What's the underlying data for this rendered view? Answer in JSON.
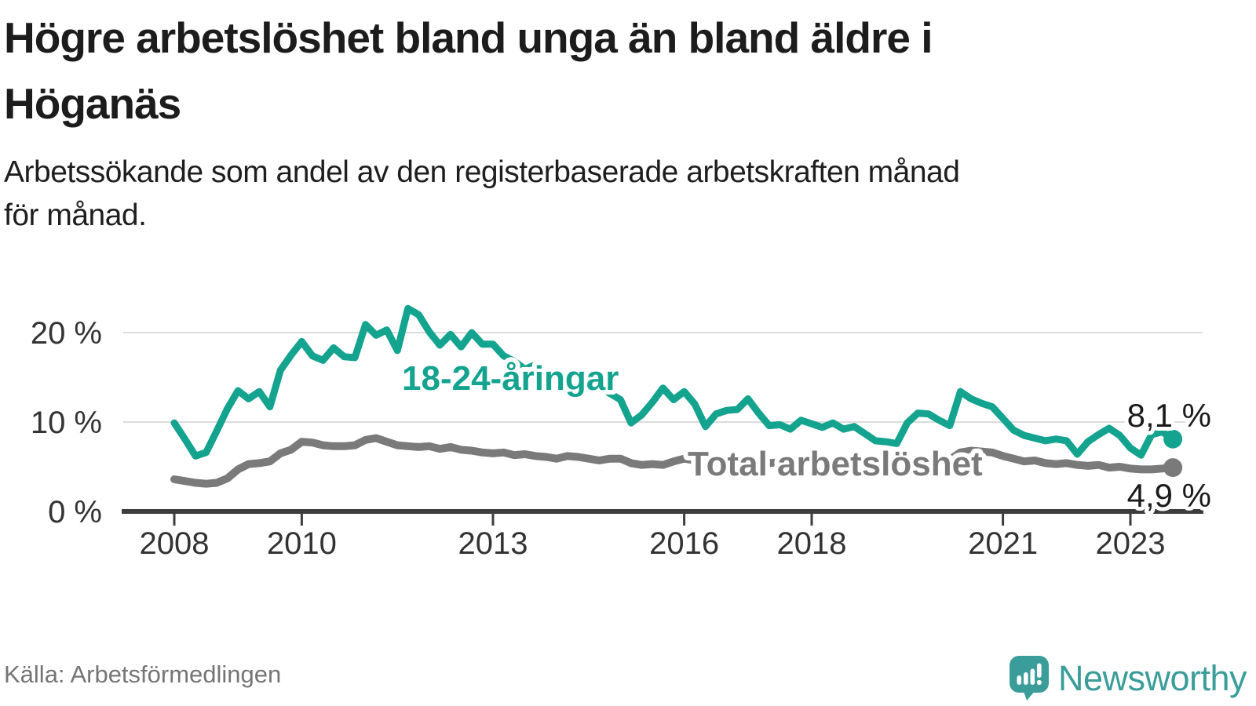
{
  "title": {
    "line1": "Högre arbetslöshet bland unga än bland äldre i",
    "line2": "Höganäs"
  },
  "subtitle": {
    "line1": "Arbetssökande som andel av den registerbaserade arbetskraften månad",
    "line2": "för månad."
  },
  "source": "Källa: Arbetsförmedlingen",
  "branding": {
    "name": "Newsworthy",
    "color": "#3a9d99",
    "icon": "newsworthy-speech-bubble-bar-chart-icon"
  },
  "colors": {
    "young_series": "#14a38e",
    "total_series": "#7a7a7a",
    "axis": "#3d3d3d",
    "gridline": "#dcdcdc",
    "tick_text": "#333333"
  },
  "chart_data": {
    "type": "line",
    "title": "Högre arbetslöshet bland unga än bland äldre i Höganäs",
    "subtitle": "Arbetssökande som andel av den registerbaserade arbetskraften månad för månad.",
    "xlabel": "",
    "ylabel": "",
    "x_start_year": 2008,
    "x_step_years": 0.1666667,
    "x_end_year_approx": 2023.67,
    "xlim": [
      2007.4,
      2024.1
    ],
    "ylim": [
      0,
      23.5
    ],
    "grid": "horizontal",
    "legend_position": "inline-labels",
    "x_ticks": [
      {
        "year": 2008,
        "label": "2008"
      },
      {
        "year": 2010,
        "label": "2010"
      },
      {
        "year": 2013,
        "label": "2013"
      },
      {
        "year": 2016,
        "label": "2016"
      },
      {
        "year": 2018,
        "label": "2018"
      },
      {
        "year": 2021,
        "label": "2021"
      },
      {
        "year": 2023,
        "label": "2023"
      }
    ],
    "y_ticks": [
      {
        "value": 0,
        "label": "0 %"
      },
      {
        "value": 10,
        "label": "10 %"
      },
      {
        "value": 20,
        "label": "20 %"
      }
    ],
    "series": [
      {
        "name": "18-24-åringar",
        "label": "18-24-åringar",
        "color": "#14a38e",
        "end_value": 8.1,
        "end_label": "8,1 %",
        "values": [
          9.9,
          8.1,
          6.2,
          6.6,
          9.0,
          11.5,
          13.5,
          12.6,
          13.4,
          11.7,
          15.8,
          17.5,
          19.0,
          17.4,
          16.9,
          18.3,
          17.3,
          17.2,
          20.9,
          19.7,
          20.3,
          18.0,
          22.7,
          22.0,
          20.1,
          18.6,
          19.8,
          18.4,
          20.0,
          18.7,
          18.7,
          17.4,
          16.8,
          15.9,
          16.4,
          15.2,
          14.8,
          15.3,
          14.2,
          13.6,
          14.0,
          13.2,
          12.5,
          9.9,
          10.8,
          12.2,
          13.8,
          12.5,
          13.4,
          12.0,
          9.5,
          10.9,
          11.3,
          11.4,
          12.6,
          11.0,
          9.6,
          9.7,
          9.2,
          10.2,
          9.8,
          9.4,
          9.9,
          9.2,
          9.5,
          8.7,
          7.9,
          7.8,
          7.6,
          9.9,
          11.0,
          10.9,
          10.2,
          9.6,
          13.4,
          12.6,
          12.1,
          11.7,
          10.4,
          9.1,
          8.5,
          8.2,
          7.9,
          8.1,
          7.9,
          6.4,
          7.8,
          8.6,
          9.3,
          8.5,
          7.1,
          6.3,
          8.6,
          8.9,
          8.1
        ]
      },
      {
        "name": "Total arbetslöshet",
        "label": "Total arbetslöshet",
        "color": "#7a7a7a",
        "end_value": 4.9,
        "end_label": "4,9 %",
        "values": [
          3.6,
          3.4,
          3.2,
          3.1,
          3.2,
          3.7,
          4.7,
          5.3,
          5.4,
          5.6,
          6.5,
          6.9,
          7.8,
          7.7,
          7.4,
          7.3,
          7.3,
          7.4,
          8.0,
          8.2,
          7.8,
          7.4,
          7.3,
          7.2,
          7.3,
          7.0,
          7.2,
          6.9,
          6.8,
          6.6,
          6.5,
          6.6,
          6.3,
          6.4,
          6.2,
          6.1,
          5.9,
          6.2,
          6.1,
          5.9,
          5.7,
          5.9,
          5.9,
          5.4,
          5.2,
          5.3,
          5.2,
          5.6,
          5.9,
          5.7,
          5.6,
          5.7,
          5.6,
          5.7,
          5.8,
          5.6,
          5.4,
          5.5,
          5.4,
          5.5,
          5.5,
          5.3,
          5.2,
          5.2,
          5.1,
          5.2,
          5.3,
          5.2,
          5.1,
          5.3,
          5.5,
          5.6,
          5.7,
          5.8,
          6.6,
          6.8,
          6.7,
          6.6,
          6.2,
          5.9,
          5.6,
          5.7,
          5.4,
          5.3,
          5.4,
          5.2,
          5.1,
          5.2,
          4.9,
          5.0,
          4.8,
          4.7,
          4.7,
          4.8,
          4.9
        ]
      }
    ]
  }
}
